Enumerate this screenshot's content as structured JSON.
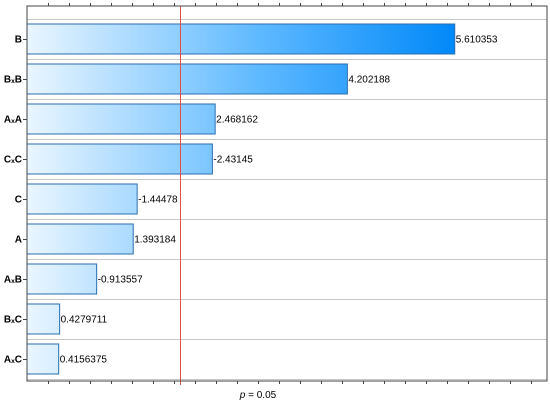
{
  "chart_data": {
    "type": "bar",
    "orientation": "horizontal",
    "categories": [
      "B",
      "BₓB",
      "AₓA",
      "CₓC",
      "C",
      "A",
      "AₓB",
      "BₓC",
      "AₓC"
    ],
    "values": [
      5.610353,
      4.202188,
      2.468162,
      -2.43145,
      -1.44478,
      1.393184,
      -0.913557,
      0.4279711,
      0.4156375
    ],
    "data_labels": [
      "5.610353",
      "4.202188",
      "2.468162",
      "-2.43145",
      "-1.44478",
      "1.393184",
      "-0.913557",
      "0.4279711",
      "0.4156375"
    ],
    "bar_length": "absolute value",
    "reference_line": {
      "value": 2.01,
      "label_italic": "p",
      "label_rest": " = 0.05",
      "color": "#e05050"
    },
    "xlim": [
      0,
      5.64
    ],
    "grid": "horizontal lines",
    "title": "",
    "xlabel": "",
    "ylabel": "",
    "colors": {
      "bar_start": "#eaf6ff",
      "bar_end": "#0090ff",
      "bar_border": "#2a6fb0",
      "grid": "#c8c8c8"
    }
  }
}
